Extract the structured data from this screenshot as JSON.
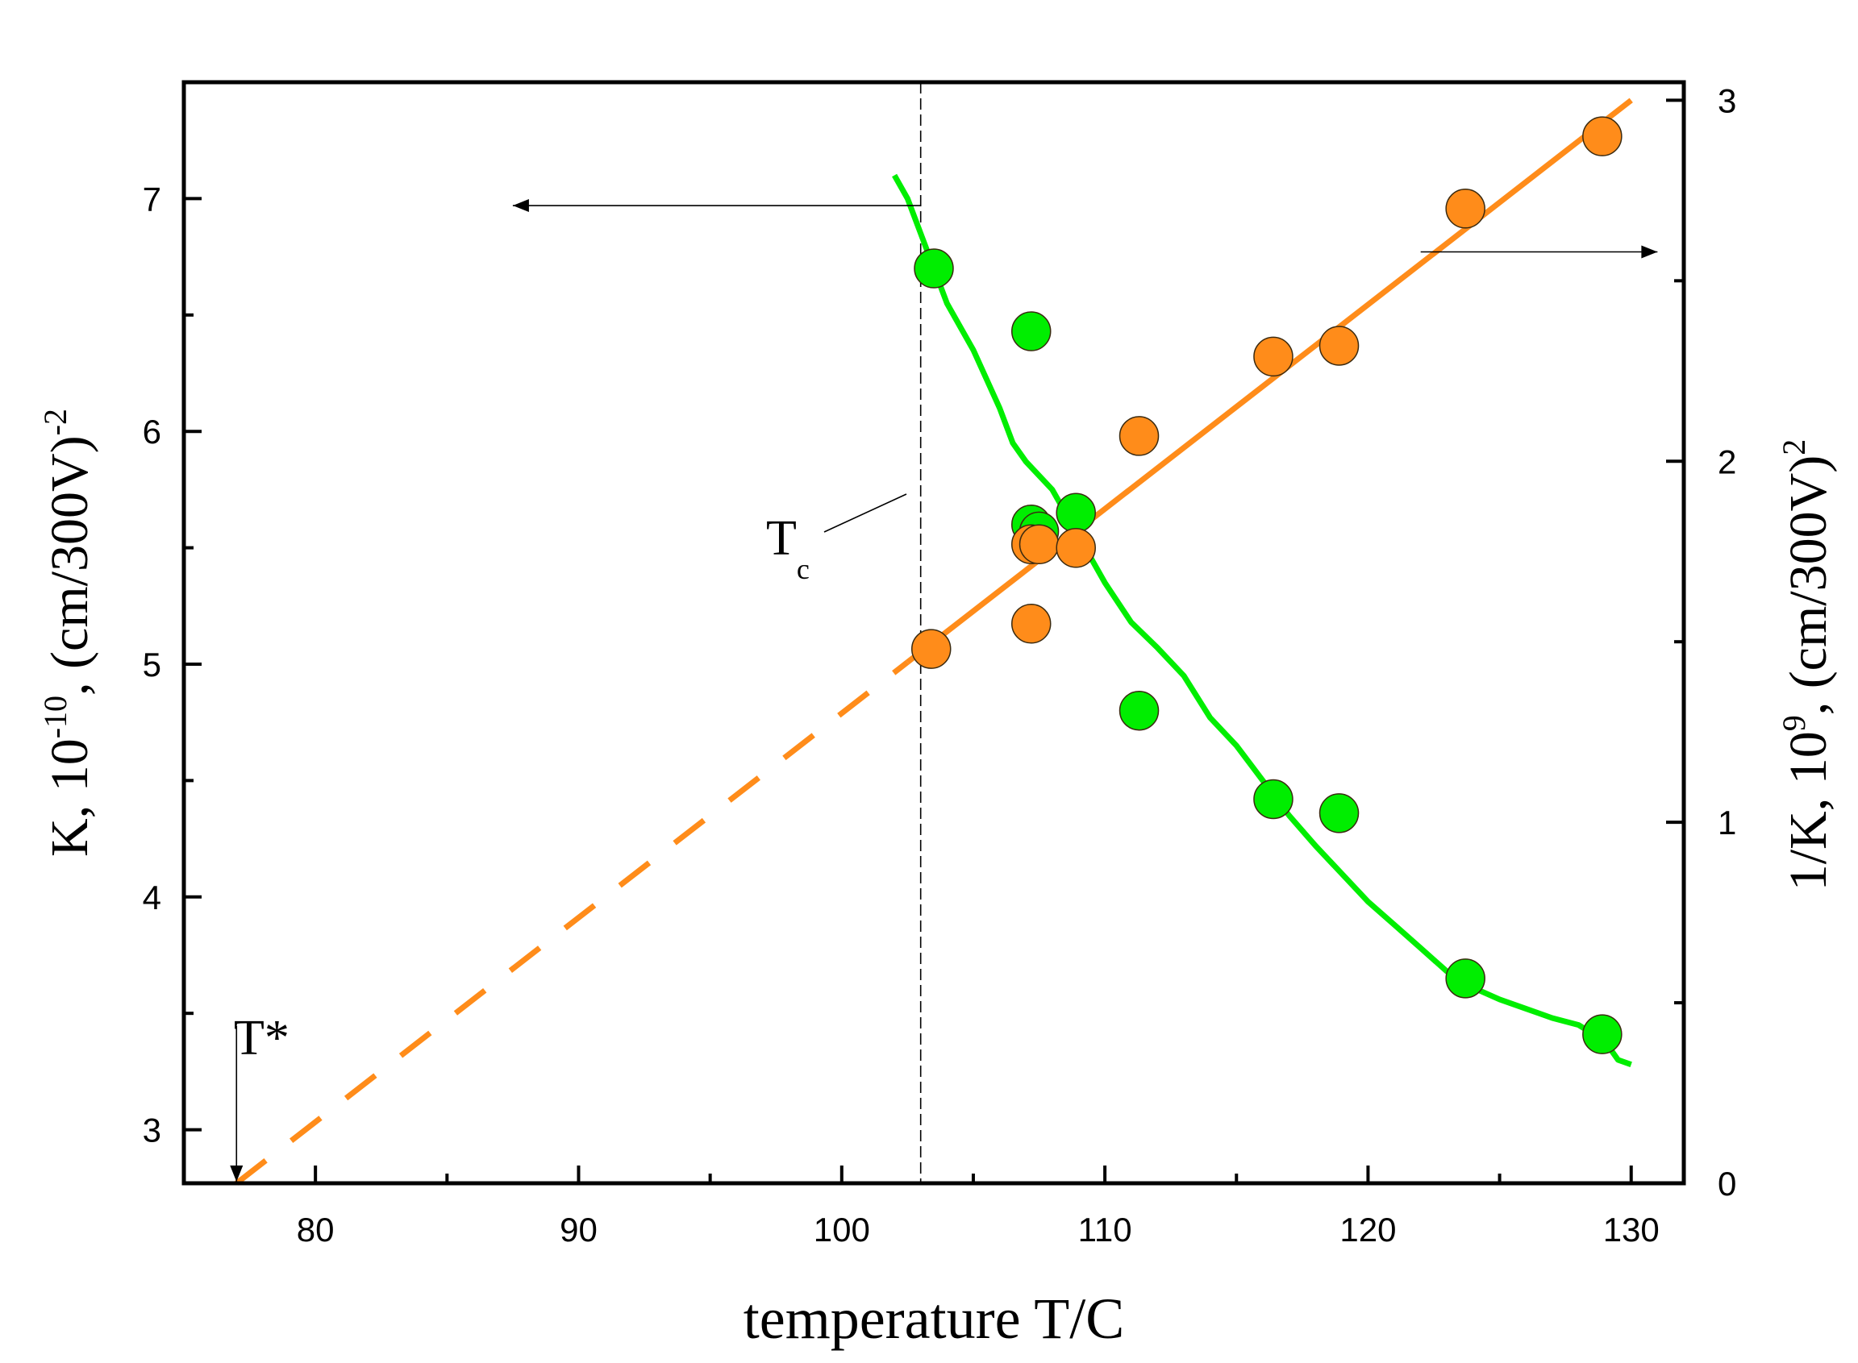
{
  "chart_data": {
    "type": "scatter",
    "xlabel": "temperature T/C",
    "ylabel_left": {
      "main": "K, 10",
      "sup": "-10",
      "rest": ", (cm/300V)",
      "sup2": "-2"
    },
    "ylabel_right": {
      "main": "1/K, 10",
      "sup": "9",
      "rest": ", (cm/300V)",
      "sup2": "2"
    },
    "xlim": [
      75,
      132
    ],
    "ylim_left": [
      2.77,
      7.5
    ],
    "ylim_right": [
      0,
      3.05
    ],
    "x_ticks": [
      80,
      90,
      100,
      110,
      120,
      130
    ],
    "x_tick_labels": [
      "80",
      "90",
      "100",
      "110",
      "120",
      "130"
    ],
    "y_left_ticks": [
      3,
      4,
      5,
      6,
      7
    ],
    "y_left_tick_labels": [
      "3",
      "4",
      "5",
      "6",
      "7"
    ],
    "y_right_ticks": [
      0,
      1,
      2,
      3
    ],
    "y_right_tick_labels": [
      "0",
      "1",
      "2",
      "3"
    ],
    "tc": {
      "x": 103,
      "label": "T",
      "sub": "c"
    },
    "tstar": {
      "x": 77,
      "label": "T*"
    },
    "series": [
      {
        "name": "K",
        "axis": "left",
        "color": "#00ee00",
        "points": [
          {
            "x": 103.5,
            "y": 6.7
          },
          {
            "x": 107.2,
            "y": 6.43
          },
          {
            "x": 107.2,
            "y": 5.6
          },
          {
            "x": 107.5,
            "y": 5.57
          },
          {
            "x": 108.9,
            "y": 5.65
          },
          {
            "x": 111.3,
            "y": 4.8
          },
          {
            "x": 116.4,
            "y": 4.42
          },
          {
            "x": 118.9,
            "y": 4.36
          },
          {
            "x": 123.7,
            "y": 3.65
          },
          {
            "x": 128.9,
            "y": 3.41
          }
        ],
        "fit_curve": [
          {
            "x": 102.0,
            "y": 7.1
          },
          {
            "x": 102.5,
            "y": 7.0
          },
          {
            "x": 103.0,
            "y": 6.85
          },
          {
            "x": 103.5,
            "y": 6.7
          },
          {
            "x": 104.0,
            "y": 6.55
          },
          {
            "x": 105.0,
            "y": 6.35
          },
          {
            "x": 106.0,
            "y": 6.1
          },
          {
            "x": 106.5,
            "y": 5.95
          },
          {
            "x": 107.0,
            "y": 5.87
          },
          {
            "x": 108.0,
            "y": 5.75
          },
          {
            "x": 109.0,
            "y": 5.55
          },
          {
            "x": 110.0,
            "y": 5.35
          },
          {
            "x": 111.0,
            "y": 5.18
          },
          {
            "x": 112.0,
            "y": 5.07
          },
          {
            "x": 113.0,
            "y": 4.95
          },
          {
            "x": 114.0,
            "y": 4.77
          },
          {
            "x": 115.0,
            "y": 4.65
          },
          {
            "x": 116.0,
            "y": 4.5
          },
          {
            "x": 117.0,
            "y": 4.35
          },
          {
            "x": 118.0,
            "y": 4.22
          },
          {
            "x": 119.0,
            "y": 4.1
          },
          {
            "x": 120.0,
            "y": 3.98
          },
          {
            "x": 121.0,
            "y": 3.88
          },
          {
            "x": 122.0,
            "y": 3.78
          },
          {
            "x": 123.0,
            "y": 3.68
          },
          {
            "x": 124.0,
            "y": 3.61
          },
          {
            "x": 125.0,
            "y": 3.56
          },
          {
            "x": 126.0,
            "y": 3.52
          },
          {
            "x": 127.0,
            "y": 3.48
          },
          {
            "x": 128.0,
            "y": 3.45
          },
          {
            "x": 129.0,
            "y": 3.38
          },
          {
            "x": 129.5,
            "y": 3.3
          },
          {
            "x": 130.0,
            "y": 3.28
          }
        ]
      },
      {
        "name": "1/K",
        "axis": "right",
        "color": "#ff8c1a",
        "points": [
          {
            "x": 103.4,
            "y": 1.48
          },
          {
            "x": 107.2,
            "y": 1.55
          },
          {
            "x": 107.2,
            "y": 1.77
          },
          {
            "x": 107.5,
            "y": 1.77
          },
          {
            "x": 108.9,
            "y": 1.76
          },
          {
            "x": 111.3,
            "y": 2.07
          },
          {
            "x": 116.4,
            "y": 2.29
          },
          {
            "x": 118.9,
            "y": 2.32
          },
          {
            "x": 123.7,
            "y": 2.7
          },
          {
            "x": 128.9,
            "y": 2.9
          }
        ],
        "fit_line": {
          "x0": 77,
          "y0": 0,
          "x1": 130,
          "y1": 3.0,
          "dashed_until": 102.5
        }
      }
    ],
    "arrows": [
      {
        "axis": "left",
        "from_x": 103,
        "to_x": 87.5,
        "y": 6.97
      },
      {
        "axis": "right",
        "from_x": 122,
        "to_x": 131,
        "y": 2.58
      }
    ]
  }
}
